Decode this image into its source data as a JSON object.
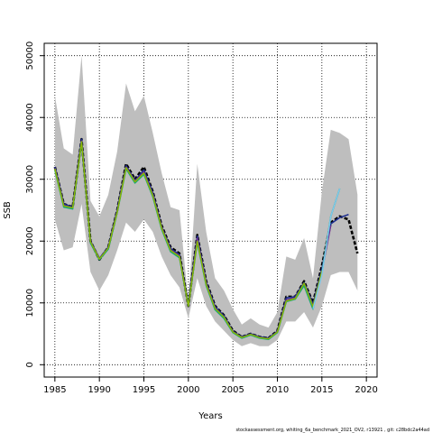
{
  "chart_data": {
    "type": "line",
    "title": "",
    "xlabel": "Years",
    "ylabel": "SSB",
    "xlim": [
      1983.8,
      2021.2
    ],
    "ylim": [
      -2000,
      52000
    ],
    "xticks": [
      1985,
      1990,
      1995,
      2000,
      2005,
      2010,
      2015,
      2020
    ],
    "yticks": [
      0,
      10000,
      20000,
      30000,
      40000,
      50000
    ],
    "grid": true,
    "legend": "none",
    "footer": "stockassessment.org, whiting_6a_benchmark_2021_OV2, r13921 , git: c28bdc2a44ad",
    "band": {
      "color": "#bebebe",
      "x": [
        1985,
        1986,
        1987,
        1988,
        1989,
        1990,
        1991,
        1992,
        1993,
        1994,
        1995,
        1996,
        1997,
        1998,
        1999,
        2000,
        2001,
        2002,
        2003,
        2004,
        2005,
        2006,
        2007,
        2008,
        2009,
        2010,
        2011,
        2012,
        2013,
        2014,
        2015,
        2016,
        2017,
        2018,
        2019
      ],
      "upper": [
        43500,
        35000,
        34000,
        50000,
        26500,
        24000,
        27500,
        34500,
        45500,
        41000,
        43500,
        37500,
        31000,
        25500,
        25000,
        10000,
        32500,
        21500,
        14000,
        12000,
        9000,
        6500,
        7500,
        6500,
        6000,
        8500,
        17500,
        17000,
        20500,
        14000,
        28000,
        38000,
        37500,
        36500,
        27500
      ],
      "lower": [
        23500,
        18500,
        19000,
        26000,
        15000,
        12000,
        14500,
        18500,
        23000,
        21500,
        23500,
        21500,
        17500,
        14500,
        12500,
        7500,
        14000,
        9500,
        7000,
        5500,
        4000,
        3000,
        3500,
        3000,
        3000,
        4000,
        7000,
        7000,
        8500,
        6000,
        9500,
        14500,
        15000,
        15000,
        12000
      ]
    },
    "series": [
      {
        "color": "#000000",
        "dash": "4,2",
        "width": 2.6,
        "x": [
          1985,
          1986,
          1987,
          1988,
          1989,
          1990,
          1991,
          1992,
          1993,
          1994,
          1995,
          1996,
          1997,
          1998,
          1999,
          2000,
          2001,
          2002,
          2003,
          2004,
          2005,
          2006,
          2007,
          2008,
          2009,
          2010,
          2011,
          2012,
          2013,
          2014,
          2015,
          2016,
          2017,
          2018,
          2019
        ],
        "y": [
          32000,
          26000,
          25500,
          36500,
          20000,
          17000,
          19000,
          25000,
          32500,
          30000,
          32000,
          28000,
          22500,
          19000,
          18000,
          9500,
          21000,
          13500,
          9500,
          8000,
          5500,
          4500,
          5000,
          4500,
          4300,
          5500,
          11000,
          11000,
          13500,
          10000,
          16000,
          23000,
          24000,
          23500,
          18000
        ]
      },
      {
        "color": "#1e2f8f",
        "dash": "",
        "width": 1.6,
        "x": [
          1985,
          1986,
          1987,
          1988,
          1989,
          1990,
          1991,
          1992,
          1993,
          1994,
          1995,
          1996,
          1997,
          1998,
          1999,
          2000,
          2001,
          2002,
          2003,
          2004,
          2005,
          2006,
          2007,
          2008,
          2009,
          2010,
          2011,
          2012,
          2013,
          2014,
          2015,
          2016,
          2017,
          2018
        ],
        "y": [
          32000,
          26000,
          25500,
          36500,
          20000,
          17200,
          19000,
          25000,
          32200,
          29800,
          31500,
          27800,
          22300,
          18800,
          17800,
          9600,
          20800,
          13300,
          9400,
          7900,
          5400,
          4500,
          5000,
          4500,
          4300,
          5400,
          10800,
          11000,
          13300,
          9800,
          15500,
          22800,
          23800,
          24300
        ]
      },
      {
        "color": "#6a2c91",
        "dash": "",
        "width": 1.4,
        "x": [
          1985,
          1986,
          1987,
          1988,
          1989,
          1990,
          1991,
          1992,
          1993,
          1994,
          1995,
          1996,
          1997,
          1998,
          1999,
          2000,
          2001,
          2002,
          2003,
          2004,
          2005,
          2006,
          2007,
          2008,
          2009,
          2010,
          2011,
          2012,
          2013,
          2014,
          2015,
          2016
        ],
        "y": [
          31800,
          25800,
          25300,
          36200,
          19800,
          17000,
          18800,
          24800,
          32000,
          29700,
          31200,
          27500,
          22200,
          18600,
          17600,
          9500,
          20500,
          13100,
          9200,
          7700,
          5300,
          4400,
          4900,
          4400,
          4200,
          5300,
          10500,
          10800,
          13000,
          9500,
          15000,
          22500
        ]
      },
      {
        "color": "#17a673",
        "dash": "",
        "width": 1.6,
        "x": [
          1985,
          1986,
          1987,
          1988,
          1989,
          1990,
          1991,
          1992,
          1993,
          1994,
          1995,
          1996,
          1997,
          1998,
          1999,
          2000,
          2001,
          2002,
          2003,
          2004,
          2005,
          2006,
          2007,
          2008,
          2009,
          2010,
          2011,
          2012,
          2013,
          2014,
          2015,
          2016,
          2017
        ],
        "y": [
          31500,
          25500,
          25200,
          36000,
          19700,
          17000,
          18700,
          24600,
          31700,
          29400,
          30800,
          27200,
          21900,
          18300,
          17300,
          9500,
          19800,
          12800,
          8900,
          7500,
          5200,
          4300,
          4800,
          4300,
          4100,
          5200,
          10200,
          10600,
          12800,
          9000,
          14800,
          24000,
          28500
        ]
      },
      {
        "color": "#8db600",
        "dash": "",
        "width": 1.4,
        "x": [
          1985,
          1986,
          1987,
          1988,
          1989,
          1990,
          1991,
          1992,
          1993,
          1994,
          1995,
          1996,
          1997,
          1998,
          1999,
          2000,
          2001,
          2002,
          2003,
          2004,
          2005,
          2006,
          2007,
          2008,
          2009,
          2010,
          2011,
          2012,
          2013,
          2014,
          2015
        ],
        "y": [
          31700,
          25700,
          25400,
          36100,
          19900,
          17100,
          18900,
          24700,
          31900,
          29600,
          31000,
          27400,
          22100,
          18500,
          17500,
          9500,
          20000,
          13000,
          9100,
          7700,
          5300,
          4400,
          4900,
          4400,
          4200,
          5300,
          10300,
          10700,
          13200,
          9400,
          15200
        ]
      },
      {
        "color": "#7ec8ec",
        "dash": "",
        "width": 1.5,
        "x": [
          2014,
          2015,
          2016,
          2017
        ],
        "y": [
          9000,
          14500,
          24000,
          28500
        ]
      }
    ]
  }
}
